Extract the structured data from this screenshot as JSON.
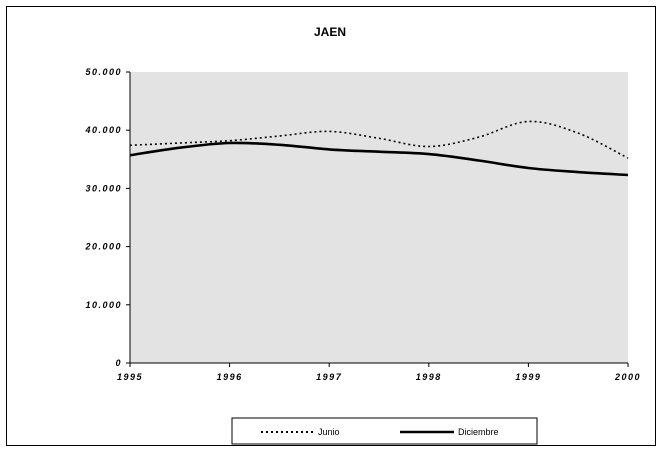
{
  "chart_data": {
    "type": "line",
    "title": "JAEN",
    "xlabel": "",
    "ylabel": "",
    "xlim": [
      1995,
      2000
    ],
    "ylim": [
      0,
      50000
    ],
    "x_ticks": [
      "1995",
      "1996",
      "1997",
      "1998",
      "1999",
      "2000"
    ],
    "y_ticks": [
      "0",
      "10.000",
      "20.000",
      "30.000",
      "40.000",
      "50.000"
    ],
    "grid": false,
    "legend_position": "bottom",
    "plot_background": "#e3e3e3",
    "series": [
      {
        "name": "Junio",
        "style": "dotted",
        "color": "#000000",
        "x": [
          1995,
          1995.5,
          1996,
          1996.5,
          1997,
          1997.5,
          1998,
          1998.5,
          1999,
          1999.5,
          2000
        ],
        "values": [
          37400,
          37800,
          38200,
          39000,
          39800,
          38600,
          37200,
          38800,
          41500,
          39500,
          35200
        ]
      },
      {
        "name": "Diciembre",
        "style": "solid",
        "color": "#000000",
        "x": [
          1995,
          1995.5,
          1996,
          1996.5,
          1997,
          1997.5,
          1998,
          1998.5,
          1999,
          1999.5,
          2000
        ],
        "values": [
          35700,
          37000,
          37800,
          37500,
          36700,
          36300,
          35900,
          34800,
          33500,
          32800,
          32300
        ]
      }
    ]
  }
}
